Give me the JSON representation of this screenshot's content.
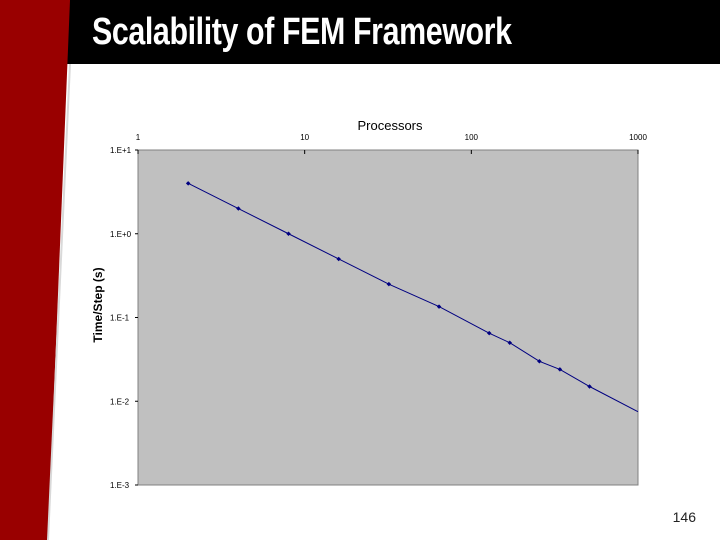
{
  "slide": {
    "title": "Scalability of FEM Framework",
    "page_number": "146"
  },
  "colors": {
    "title_bar": "#000000",
    "accent_strip": "#990000",
    "plot_background": "#c0c0c0",
    "series": "#000080"
  },
  "chart_data": {
    "type": "scatter",
    "title": "",
    "xlabel": "Processors",
    "ylabel": "Time/Step (s)",
    "x_axis_position": "top",
    "xscale": "log",
    "yscale": "log",
    "xlim": [
      1,
      1000
    ],
    "ylim": [
      0.001,
      10
    ],
    "x_ticks": [
      1,
      10,
      100,
      1000
    ],
    "x_tick_labels": [
      "1",
      "10",
      "100",
      "1000"
    ],
    "y_ticks": [
      10,
      1,
      0.1,
      0.01,
      0.001
    ],
    "y_tick_labels": [
      "1.E+1",
      "1.E+0",
      "1.E-1",
      "1.E-2",
      "1.E-3"
    ],
    "grid": false,
    "legend": false,
    "series": [
      {
        "x": [
          2,
          4,
          8,
          16,
          32,
          64,
          128,
          170,
          256,
          340,
          512
        ],
        "y": [
          4.0,
          2.0,
          1.0,
          0.5,
          0.25,
          0.135,
          0.065,
          0.05,
          0.03,
          0.024,
          0.015
        ],
        "trend_end": [
          1000,
          0.0075
        ]
      }
    ]
  }
}
